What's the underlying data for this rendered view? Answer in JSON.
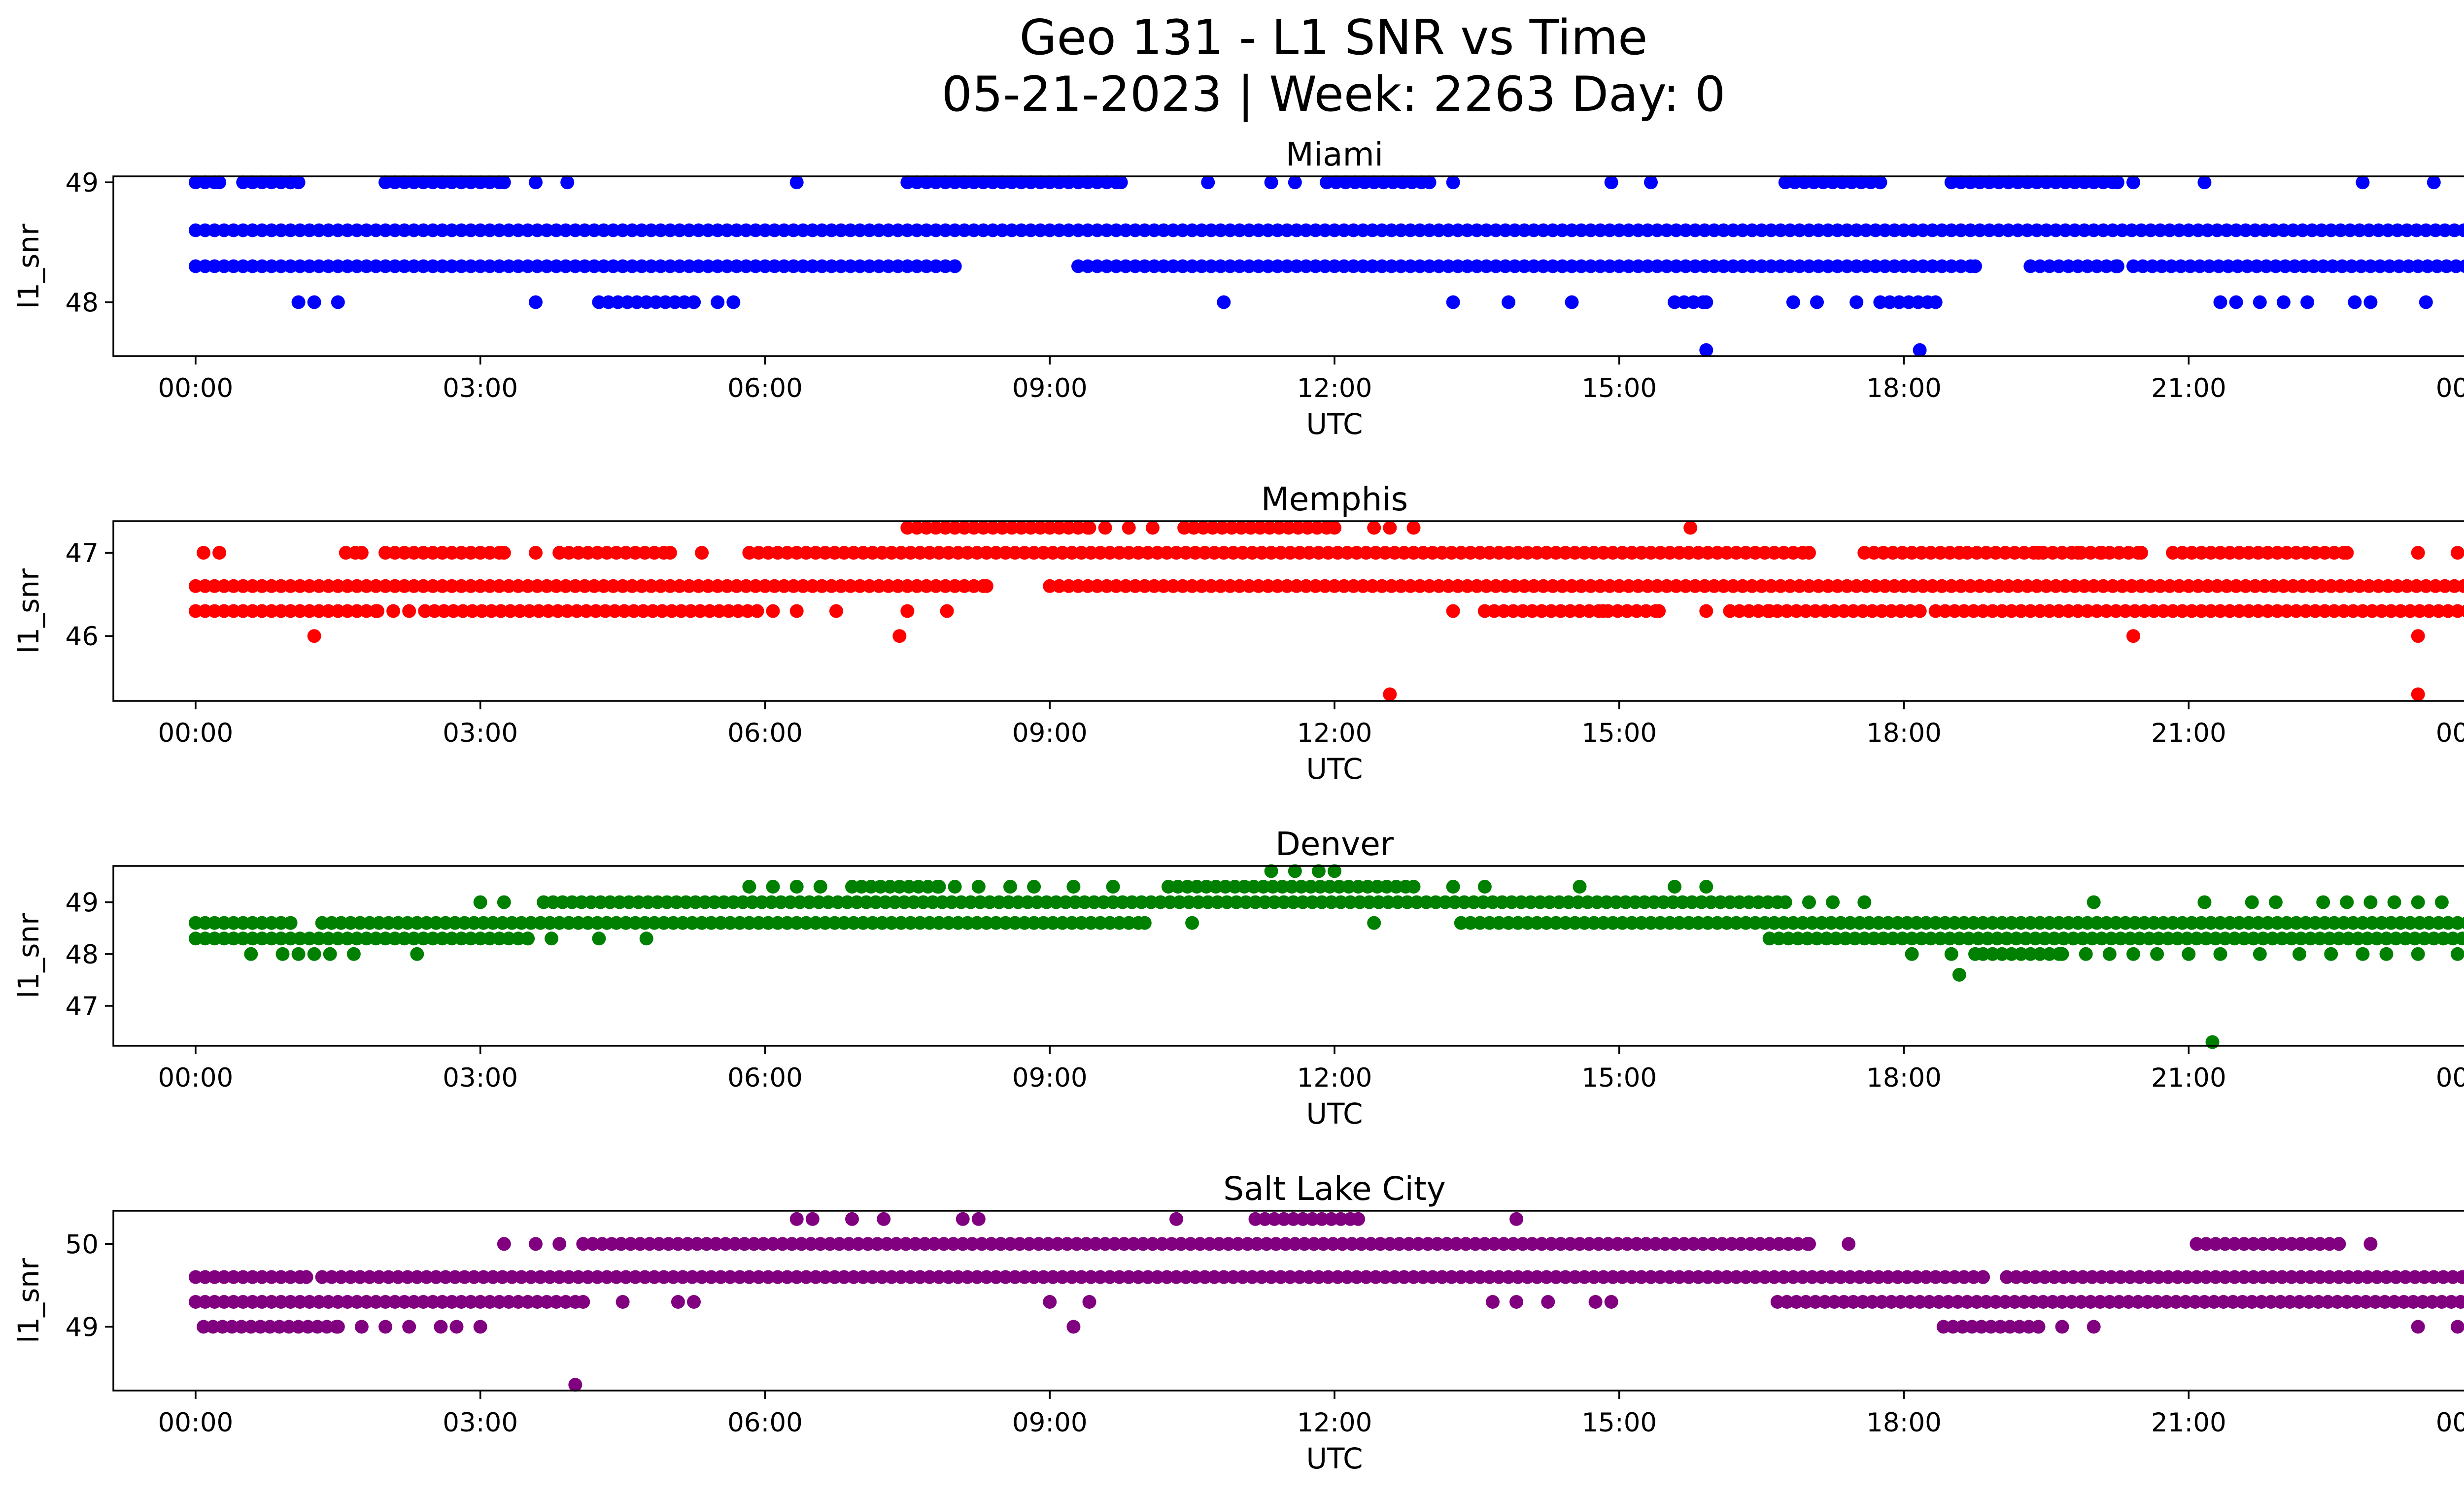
{
  "figure": {
    "title_line1": "Geo 131 - L1 SNR vs Time",
    "title_line2": "05-21-2023 | Week: 2263 Day: 0"
  },
  "chart_data": [
    {
      "type": "scatter",
      "title": "Miami",
      "xlabel": "UTC",
      "ylabel": "l1_snr",
      "color": "#0000ff",
      "xlim": [
        "23:08",
        "00:52"
      ],
      "ylim": [
        47.55,
        49.05
      ],
      "x_ticks": [
        "00:00",
        "03:00",
        "06:00",
        "09:00",
        "12:00",
        "15:00",
        "18:00",
        "21:00",
        "00:00"
      ],
      "y_ticks": [
        48,
        49
      ],
      "series": [
        {
          "values": [
            {
              "y": 48.6,
              "ranges": [
                [
                  "00:00",
                  "23:59"
                ]
              ]
            },
            {
              "y": 48.3,
              "ranges": [
                [
                  "00:00",
                  "08:00"
                ],
                [
                  "09:18",
                  "18:45"
                ],
                [
                  "19:20",
                  "20:15"
                ],
                [
                  "20:25",
                  "23:59"
                ]
              ]
            },
            {
              "y": 49.0,
              "ranges": [
                [
                  "00:00",
                  "00:15"
                ],
                [
                  "00:30",
                  "01:00"
                ],
                [
                  "02:00",
                  "03:15"
                ],
                [
                  "07:30",
                  "09:45"
                ],
                [
                  "11:55",
                  "13:00"
                ],
                [
                  "16:45",
                  "17:45"
                ],
                [
                  "18:30",
                  "20:15"
                ]
              ]
            },
            {
              "y": 49.0,
              "times": [
                "01:05",
                "03:35",
                "03:55",
                "06:20",
                "10:40",
                "11:20",
                "11:35",
                "13:15",
                "14:55",
                "15:20",
                "20:25",
                "21:10",
                "22:50",
                "23:35"
              ]
            },
            {
              "y": 48.0,
              "ranges": [
                [
                  "04:15",
                  "05:15"
                ],
                [
                  "15:35",
                  "15:55"
                ],
                [
                  "17:45",
                  "18:20"
                ]
              ]
            },
            {
              "y": 48.0,
              "times": [
                "01:05",
                "01:15",
                "01:30",
                "03:35",
                "05:30",
                "05:40",
                "10:50",
                "13:15",
                "13:50",
                "14:30",
                "16:50",
                "17:05",
                "17:30",
                "21:20",
                "21:30",
                "21:45",
                "22:00",
                "22:15",
                "22:45",
                "22:55",
                "23:30"
              ]
            },
            {
              "y": 47.6,
              "times": [
                "15:55",
                "18:10"
              ]
            }
          ]
        }
      ]
    },
    {
      "type": "scatter",
      "title": "Memphis",
      "xlabel": "UTC",
      "ylabel": "l1_snr",
      "color": "#ff0000",
      "xlim": [
        "23:08",
        "00:52"
      ],
      "ylim": [
        45.22,
        47.38
      ],
      "x_ticks": [
        "00:00",
        "03:00",
        "06:00",
        "09:00",
        "12:00",
        "15:00",
        "18:00",
        "21:00",
        "00:00"
      ],
      "y_ticks": [
        46,
        47
      ],
      "series": [
        {
          "values": [
            {
              "y": 46.6,
              "ranges": [
                [
                  "00:00",
                  "08:20"
                ],
                [
                  "09:00",
                  "23:59"
                ]
              ]
            },
            {
              "y": 46.3,
              "ranges": [
                [
                  "00:00",
                  "01:55"
                ],
                [
                  "02:25",
                  "05:55"
                ],
                [
                  "13:35",
                  "15:25"
                ],
                [
                  "16:10",
                  "18:10"
                ],
                [
                  "18:20",
                  "23:59"
                ]
              ]
            },
            {
              "y": 47.0,
              "ranges": [
                [
                  "01:35",
                  "01:45"
                ],
                [
                  "02:00",
                  "03:15"
                ],
                [
                  "03:50",
                  "05:00"
                ],
                [
                  "05:50",
                  "17:00"
                ],
                [
                  "17:35",
                  "18:35"
                ],
                [
                  "18:40",
                  "20:30"
                ],
                [
                  "20:50",
                  "22:40"
                ]
              ]
            },
            {
              "y": 47.0,
              "times": [
                "00:05",
                "00:15",
                "03:35",
                "05:20",
                "19:25",
                "19:50",
                "20:05",
                "23:25",
                "23:50",
                "23:59"
              ]
            },
            {
              "y": 47.3,
              "ranges": [
                [
                  "07:30",
                  "09:25"
                ],
                [
                  "10:25",
                  "12:00"
                ]
              ]
            },
            {
              "y": 47.3,
              "times": [
                "09:35",
                "09:50",
                "10:05",
                "12:25",
                "12:35",
                "12:50",
                "15:45"
              ]
            },
            {
              "y": 46.3,
              "times": [
                "02:05",
                "02:15",
                "06:05",
                "06:20",
                "06:45",
                "07:30",
                "07:55",
                "13:15",
                "14:35",
                "14:50",
                "15:05",
                "15:25",
                "15:55",
                "16:35",
                "18:10"
              ]
            },
            {
              "y": 46.0,
              "times": [
                "01:15",
                "07:25",
                "20:25",
                "23:25",
                "23:59"
              ]
            },
            {
              "y": 45.3,
              "times": [
                "12:35",
                "23:25"
              ]
            }
          ]
        }
      ]
    },
    {
      "type": "scatter",
      "title": "Denver",
      "xlabel": "UTC",
      "ylabel": "l1_snr",
      "color": "#008000",
      "xlim": [
        "23:08",
        "00:52"
      ],
      "ylim": [
        46.23,
        49.7
      ],
      "x_ticks": [
        "00:00",
        "03:00",
        "06:00",
        "09:00",
        "12:00",
        "15:00",
        "18:00",
        "21:00",
        "00:00"
      ],
      "y_ticks": [
        47,
        48,
        49
      ],
      "series": [
        {
          "values": [
            {
              "y": 48.6,
              "ranges": [
                [
                  "00:00",
                  "01:00"
                ],
                [
                  "01:20",
                  "10:00"
                ],
                [
                  "13:20",
                  "23:59"
                ]
              ]
            },
            {
              "y": 48.3,
              "ranges": [
                [
                  "00:00",
                  "03:30"
                ],
                [
                  "16:35",
                  "23:59"
                ]
              ]
            },
            {
              "y": 48.6,
              "times": [
                "10:30",
                "12:25"
              ]
            },
            {
              "y": 49.0,
              "ranges": [
                [
                  "03:40",
                  "16:45"
                ]
              ]
            },
            {
              "y": 49.0,
              "times": [
                "03:00",
                "03:15",
                "17:00",
                "17:15",
                "17:35",
                "20:00",
                "21:10",
                "21:40",
                "21:55",
                "22:25",
                "22:40",
                "22:55",
                "23:10",
                "23:25",
                "23:40"
              ]
            },
            {
              "y": 49.3,
              "ranges": [
                [
                  "06:55",
                  "07:50"
                ],
                [
                  "10:15",
                  "12:50"
                ]
              ]
            },
            {
              "y": 49.3,
              "times": [
                "05:50",
                "06:05",
                "06:20",
                "06:35",
                "08:00",
                "08:15",
                "08:35",
                "08:50",
                "09:15",
                "09:40",
                "13:15",
                "13:35",
                "14:35",
                "15:35",
                "15:55"
              ]
            },
            {
              "y": 49.6,
              "times": [
                "11:20",
                "11:35",
                "11:50",
                "12:00"
              ]
            },
            {
              "y": 48.3,
              "times": [
                "03:45",
                "04:15",
                "04:45"
              ]
            },
            {
              "y": 48.0,
              "ranges": [
                [
                  "18:50",
                  "19:40"
                ]
              ]
            },
            {
              "y": 48.0,
              "times": [
                "00:35",
                "00:55",
                "01:05",
                "01:15",
                "01:25",
                "01:40",
                "02:20",
                "18:05",
                "18:30",
                "18:45",
                "19:55",
                "20:10",
                "20:25",
                "20:40",
                "21:00",
                "21:20",
                "21:45",
                "22:10",
                "22:30",
                "22:50",
                "23:05",
                "23:25",
                "23:50",
                "23:59"
              ]
            },
            {
              "y": 47.6,
              "times": [
                "18:35"
              ]
            },
            {
              "y": 46.3,
              "times": [
                "21:15"
              ]
            }
          ]
        }
      ]
    },
    {
      "type": "scatter",
      "title": "Salt Lake City",
      "xlabel": "UTC",
      "ylabel": "l1_snr",
      "color": "#800080",
      "xlim": [
        "23:08",
        "00:52"
      ],
      "ylim": [
        48.23,
        50.4
      ],
      "x_ticks": [
        "00:00",
        "03:00",
        "06:00",
        "09:00",
        "12:00",
        "15:00",
        "18:00",
        "21:00",
        "00:00"
      ],
      "y_ticks": [
        49,
        50
      ],
      "series": [
        {
          "values": [
            {
              "y": 49.6,
              "ranges": [
                [
                  "00:00",
                  "01:10"
                ],
                [
                  "01:20",
                  "18:50"
                ],
                [
                  "19:05",
                  "23:55"
                ]
              ]
            },
            {
              "y": 49.3,
              "ranges": [
                [
                  "00:00",
                  "04:05"
                ],
                [
                  "16:40",
                  "23:59"
                ]
              ]
            },
            {
              "y": 49.3,
              "times": [
                "04:30",
                "05:05",
                "05:15",
                "09:00",
                "09:25",
                "13:40",
                "13:55",
                "14:15",
                "14:45",
                "14:55"
              ]
            },
            {
              "y": 50.0,
              "ranges": [
                [
                  "04:05",
                  "17:00"
                ],
                [
                  "21:05",
                  "22:35"
                ]
              ]
            },
            {
              "y": 50.0,
              "times": [
                "03:15",
                "03:35",
                "03:50",
                "17:25",
                "22:55"
              ]
            },
            {
              "y": 50.3,
              "ranges": [
                [
                  "11:10",
                  "12:15"
                ]
              ]
            },
            {
              "y": 50.3,
              "times": [
                "06:20",
                "06:30",
                "06:55",
                "07:15",
                "08:05",
                "08:15",
                "10:20",
                "13:55"
              ]
            },
            {
              "y": 49.0,
              "ranges": [
                [
                  "00:05",
                  "01:30"
                ],
                [
                  "18:25",
                  "19:25"
                ]
              ]
            },
            {
              "y": 49.0,
              "times": [
                "01:45",
                "02:00",
                "02:15",
                "02:35",
                "02:45",
                "03:00",
                "09:15",
                "19:40",
                "20:00",
                "23:25",
                "23:50",
                "23:59"
              ]
            },
            {
              "y": 48.3,
              "times": [
                "04:00"
              ]
            }
          ]
        }
      ]
    }
  ]
}
